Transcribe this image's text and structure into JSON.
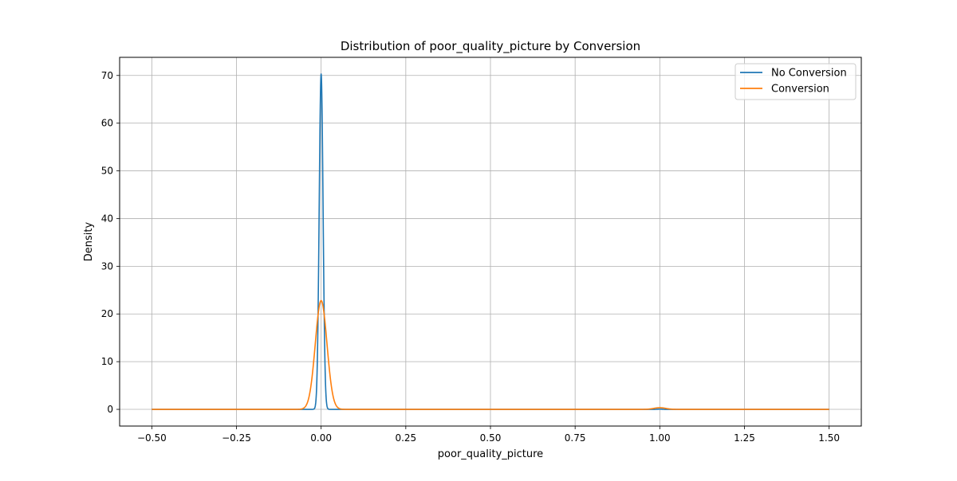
{
  "chart_data": {
    "type": "line",
    "title": "Distribution of poor_quality_picture by Conversion",
    "xlabel": "poor_quality_picture",
    "ylabel": "Density",
    "xlim": [
      -0.595,
      1.595
    ],
    "ylim": [
      -3.5,
      73.8
    ],
    "xticks": [
      -0.5,
      -0.25,
      0.0,
      0.25,
      0.5,
      0.75,
      1.0,
      1.25,
      1.5
    ],
    "xtick_labels": [
      "−0.50",
      "−0.25",
      "0.00",
      "0.25",
      "0.50",
      "0.75",
      "1.00",
      "1.25",
      "1.50"
    ],
    "yticks": [
      0,
      10,
      20,
      30,
      40,
      50,
      60,
      70
    ],
    "ytick_labels": [
      "0",
      "10",
      "20",
      "30",
      "40",
      "50",
      "60",
      "70"
    ],
    "grid": true,
    "legend_position": "top-right",
    "series": [
      {
        "name": "No Conversion",
        "color": "#1f77b4",
        "x_range": [
          -0.5,
          1.5
        ],
        "components": [
          {
            "center": 0.0,
            "sd": 0.0057,
            "peak": 70.3
          },
          {
            "center": 1.0,
            "sd": 0.0057,
            "peak": 0.05
          }
        ]
      },
      {
        "name": "Conversion",
        "color": "#ff7f0e",
        "x_range": [
          -0.5,
          1.5
        ],
        "components": [
          {
            "center": 0.0,
            "sd": 0.0172,
            "peak": 22.8
          },
          {
            "center": 1.0,
            "sd": 0.0172,
            "peak": 0.35
          }
        ]
      }
    ]
  }
}
